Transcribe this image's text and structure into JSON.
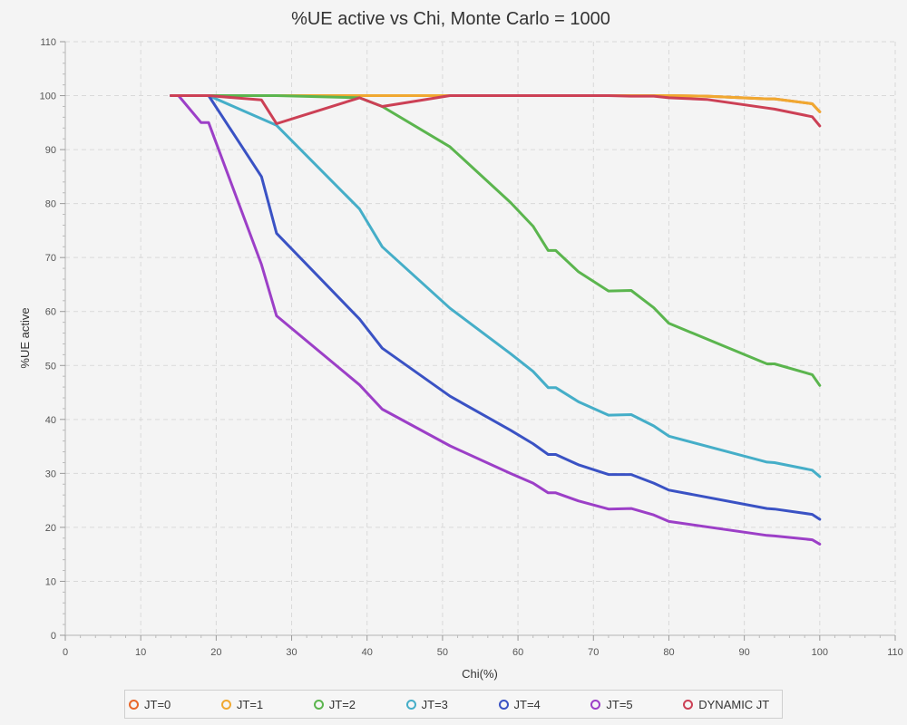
{
  "chart_data": {
    "type": "line",
    "title": "%UE active vs Chi, Monte Carlo = 1000",
    "xlabel": "Chi(%)",
    "ylabel": "%UE active",
    "xlim": [
      0,
      110
    ],
    "ylim": [
      0,
      110
    ],
    "xticks": [
      0,
      10,
      20,
      30,
      40,
      50,
      60,
      70,
      80,
      90,
      100,
      110
    ],
    "yticks": [
      0,
      10,
      20,
      30,
      40,
      50,
      60,
      70,
      80,
      90,
      100,
      110
    ],
    "grid": true,
    "legend_position": "bottom",
    "series": [
      {
        "name": "JT=0",
        "color": "#e8672a",
        "x": [
          14,
          15,
          19,
          28,
          39,
          42,
          51,
          59,
          62,
          64,
          65,
          68,
          72,
          75,
          78,
          80,
          85,
          93,
          94,
          99,
          100
        ],
        "y": [
          100,
          100,
          100,
          100,
          100,
          100,
          100,
          100,
          100,
          100,
          100,
          100,
          100,
          100,
          100,
          100,
          99.9,
          99.4,
          99.4,
          98.5,
          97
        ]
      },
      {
        "name": "JT=1",
        "color": "#f0a830",
        "x": [
          14,
          15,
          19,
          28,
          39,
          42,
          51,
          59,
          62,
          64,
          65,
          68,
          72,
          75,
          78,
          80,
          85,
          93,
          94,
          99,
          100
        ],
        "y": [
          100,
          100,
          100,
          100,
          100,
          100,
          100,
          100,
          100,
          100,
          100,
          100,
          100,
          100,
          100,
          100,
          99.9,
          99.4,
          99.4,
          98.5,
          97
        ]
      },
      {
        "name": "JT=2",
        "color": "#5bb54e",
        "x": [
          14,
          15,
          19,
          28,
          39,
          42,
          51,
          59,
          62,
          64,
          65,
          68,
          72,
          75,
          78,
          80,
          93,
          94,
          99,
          100
        ],
        "y": [
          100,
          100,
          100,
          100,
          99.6,
          98,
          90.5,
          80.2,
          75.8,
          71.3,
          71.3,
          67.4,
          63.8,
          63.9,
          60.7,
          57.8,
          50.3,
          50.3,
          48.3,
          46.3
        ]
      },
      {
        "name": "JT=3",
        "color": "#45aec8",
        "x": [
          14,
          15,
          19,
          28,
          39,
          42,
          51,
          59,
          62,
          64,
          65,
          68,
          72,
          75,
          78,
          80,
          93,
          94,
          99,
          100
        ],
        "y": [
          100,
          100,
          100,
          94.5,
          79,
          72,
          60.6,
          52.2,
          48.9,
          45.9,
          45.9,
          43.3,
          40.8,
          40.9,
          38.8,
          36.9,
          32.1,
          32,
          30.6,
          29.4
        ]
      },
      {
        "name": "JT=4",
        "color": "#3a52c4",
        "x": [
          14,
          15,
          19,
          26,
          28,
          39,
          42,
          51,
          59,
          62,
          64,
          65,
          68,
          72,
          75,
          78,
          80,
          93,
          94,
          99,
          100
        ],
        "y": [
          100,
          100,
          100,
          85,
          74.5,
          58.6,
          53.2,
          44.3,
          38,
          35.5,
          33.5,
          33.5,
          31.6,
          29.8,
          29.8,
          28.2,
          26.9,
          23.5,
          23.4,
          22.4,
          21.5
        ]
      },
      {
        "name": "JT=5",
        "color": "#9c3fc7",
        "x": [
          14,
          15,
          18,
          19,
          26,
          28,
          39,
          42,
          51,
          59,
          62,
          64,
          65,
          68,
          72,
          75,
          78,
          80,
          93,
          94,
          99,
          100
        ],
        "y": [
          100,
          100,
          95,
          95,
          68.7,
          59.2,
          46.4,
          41.9,
          35.1,
          30,
          28.2,
          26.4,
          26.4,
          24.9,
          23.4,
          23.5,
          22.3,
          21.1,
          18.5,
          18.4,
          17.7,
          16.9
        ]
      },
      {
        "name": "DYNAMIC JT",
        "color": "#cc4055",
        "x": [
          14,
          15,
          19,
          26,
          28,
          39,
          42,
          51,
          59,
          62,
          64,
          65,
          68,
          72,
          75,
          78,
          80,
          85,
          93,
          94,
          99,
          100
        ],
        "y": [
          100,
          100,
          100,
          99.2,
          94.8,
          99.6,
          98,
          100,
          100,
          100,
          100,
          100,
          100,
          100,
          99.9,
          99.9,
          99.6,
          99.3,
          97.7,
          97.5,
          96.1,
          94.4
        ]
      }
    ]
  }
}
